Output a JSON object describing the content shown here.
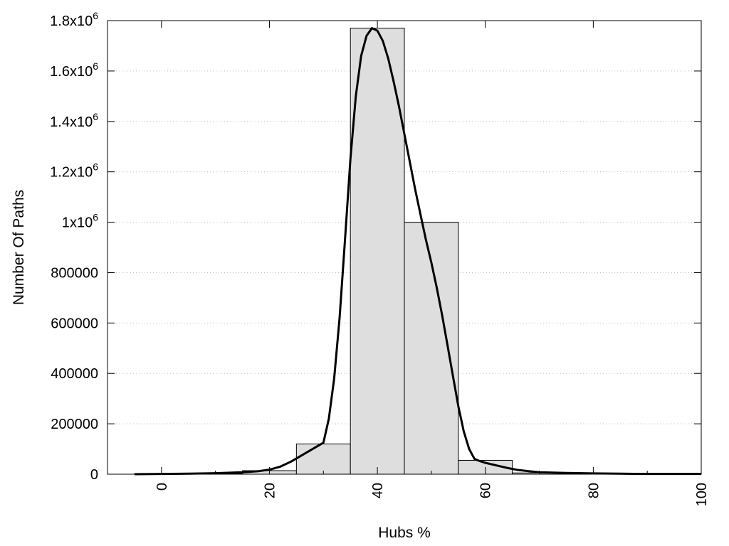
{
  "chart_data": {
    "type": "bar",
    "xlabel": "Hubs %",
    "ylabel": "Number Of Paths",
    "xlim": [
      -10,
      100
    ],
    "ylim": [
      0,
      1800000
    ],
    "x_ticks": [
      {
        "value": 0,
        "label": "0"
      },
      {
        "value": 20,
        "label": "20"
      },
      {
        "value": 40,
        "label": "40"
      },
      {
        "value": 60,
        "label": "60"
      },
      {
        "value": 80,
        "label": "80"
      },
      {
        "value": 100,
        "label": "100"
      }
    ],
    "y_ticks": [
      {
        "value": 0,
        "label": "0"
      },
      {
        "value": 200000,
        "label": "200000"
      },
      {
        "value": 400000,
        "label": "400000"
      },
      {
        "value": 600000,
        "label": "600000"
      },
      {
        "value": 800000,
        "label": "800000"
      },
      {
        "value": 1000000,
        "label": "1x10",
        "sup": "6"
      },
      {
        "value": 1200000,
        "label": "1.2x10",
        "sup": "6"
      },
      {
        "value": 1400000,
        "label": "1.4x10",
        "sup": "6"
      },
      {
        "value": 1600000,
        "label": "1.6x10",
        "sup": "6"
      },
      {
        "value": 1800000,
        "label": "1.8x10",
        "sup": "6"
      }
    ],
    "grid": "horizontal-dotted",
    "bar_width": 10,
    "bars": [
      {
        "center": 0,
        "value": 1500
      },
      {
        "center": 10,
        "value": 3000
      },
      {
        "center": 20,
        "value": 14000
      },
      {
        "center": 30,
        "value": 120000
      },
      {
        "center": 40,
        "value": 1770000
      },
      {
        "center": 50,
        "value": 1000000
      },
      {
        "center": 60,
        "value": 55000
      },
      {
        "center": 70,
        "value": 5000
      },
      {
        "center": 80,
        "value": 2500
      },
      {
        "center": 90,
        "value": 2000
      }
    ],
    "fit_curve": {
      "x": [
        -5,
        0,
        5,
        10,
        15,
        18,
        20,
        22,
        24,
        26,
        28,
        30,
        31,
        32,
        33,
        34,
        35,
        36,
        37,
        38,
        39,
        40,
        41,
        42,
        43,
        44,
        45,
        46,
        47,
        48,
        49,
        50,
        51,
        52,
        53,
        54,
        55,
        56,
        57,
        58,
        59,
        60,
        62,
        64,
        66,
        68,
        70,
        75,
        80,
        85,
        90,
        95,
        100
      ],
      "y": [
        0,
        1000,
        2000,
        4000,
        8000,
        12000,
        18000,
        30000,
        50000,
        75000,
        100000,
        125000,
        220000,
        380000,
        620000,
        930000,
        1250000,
        1500000,
        1660000,
        1740000,
        1770000,
        1760000,
        1720000,
        1650000,
        1560000,
        1460000,
        1350000,
        1240000,
        1130000,
        1030000,
        930000,
        840000,
        740000,
        630000,
        510000,
        390000,
        270000,
        170000,
        100000,
        60000,
        52000,
        45000,
        35000,
        25000,
        17000,
        12000,
        8000,
        5000,
        3000,
        2000,
        1000,
        1000,
        1000
      ]
    }
  }
}
